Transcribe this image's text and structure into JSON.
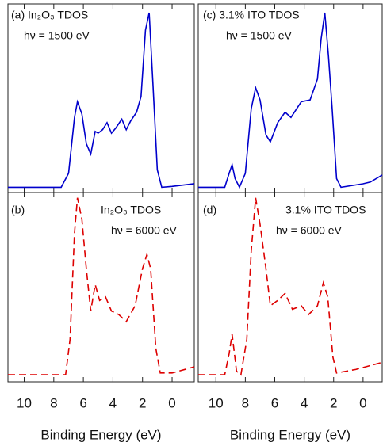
{
  "chart_data": [
    {
      "type": "line",
      "annotations": [
        "(a) In₂O₃ TDOS",
        "hν = 1500 eV"
      ],
      "x": [
        11.1,
        7.5,
        7.0,
        6.6,
        6.4,
        6.1,
        5.8,
        5.5,
        5.2,
        5.0,
        4.7,
        4.4,
        4.1,
        3.8,
        3.4,
        3.1,
        2.8,
        2.4,
        2.1,
        1.8,
        1.55,
        1.3,
        1.0,
        0.7,
        0,
        -1.5
      ],
      "series": [
        {
          "color": "#0000cc",
          "linestyle": "solid",
          "values": [
            0,
            0,
            0.08,
            0.4,
            0.49,
            0.42,
            0.25,
            0.19,
            0.32,
            0.31,
            0.33,
            0.37,
            0.31,
            0.34,
            0.39,
            0.33,
            0.38,
            0.43,
            0.52,
            0.9,
            1.0,
            0.6,
            0.1,
            0,
            0.005,
            0.02
          ]
        }
      ],
      "xlim": [
        11.1,
        -1.5
      ],
      "xticks": [
        10,
        8,
        6,
        4,
        2,
        0
      ],
      "ylim": [
        -0.03,
        1.05
      ]
    },
    {
      "type": "line",
      "annotations": [
        "(b)",
        "In₂O₃ TDOS",
        "hν = 6000 eV"
      ],
      "x": [
        11.1,
        7.2,
        6.9,
        6.6,
        6.4,
        6.1,
        5.8,
        5.5,
        5.2,
        4.9,
        4.5,
        4.1,
        3.6,
        3.1,
        2.5,
        2.0,
        1.7,
        1.45,
        1.1,
        0.8,
        0,
        -1.5
      ],
      "series": [
        {
          "color": "#dd0000",
          "linestyle": "dashed",
          "values": [
            0,
            0,
            0.2,
            0.8,
            1.0,
            0.88,
            0.6,
            0.36,
            0.51,
            0.42,
            0.44,
            0.36,
            0.34,
            0.3,
            0.39,
            0.6,
            0.68,
            0.6,
            0.15,
            0.01,
            0.01,
            0.045
          ]
        }
      ],
      "xlim": [
        11.1,
        -1.5
      ],
      "xticks": [
        10,
        8,
        6,
        4,
        2,
        0
      ],
      "ylim": [
        -0.04,
        1.03
      ],
      "xlabel": "Binding Energy (eV)"
    },
    {
      "type": "line",
      "annotations": [
        "(c) 3.1% ITO TDOS",
        "hν = 1500 eV"
      ],
      "x": [
        11.2,
        9.4,
        9.1,
        8.9,
        8.7,
        8.4,
        8.0,
        7.6,
        7.3,
        7.0,
        6.6,
        6.3,
        5.8,
        5.3,
        4.9,
        4.2,
        3.6,
        3.1,
        2.85,
        2.6,
        2.35,
        2.1,
        1.8,
        1.5,
        0,
        -0.5,
        -1.3
      ],
      "series": [
        {
          "color": "#0000cc",
          "linestyle": "solid",
          "values": [
            0,
            0,
            0.08,
            0.13,
            0.05,
            0,
            0.08,
            0.45,
            0.57,
            0.5,
            0.3,
            0.26,
            0.37,
            0.43,
            0.4,
            0.49,
            0.5,
            0.62,
            0.85,
            1.0,
            0.75,
            0.45,
            0.05,
            0,
            0.02,
            0.03,
            0.07
          ]
        }
      ],
      "xlim": [
        11.2,
        -1.3
      ],
      "xticks": [
        10,
        8,
        6,
        4,
        2,
        0
      ],
      "ylim": [
        -0.03,
        1.05
      ]
    },
    {
      "type": "line",
      "annotations": [
        "(d)",
        "3.1% ITO TDOS",
        "hν = 6000 eV"
      ],
      "x": [
        11.2,
        9.4,
        9.1,
        8.9,
        8.6,
        8.3,
        7.9,
        7.6,
        7.3,
        7.0,
        6.6,
        6.3,
        5.8,
        5.3,
        4.8,
        4.2,
        3.7,
        3.1,
        2.7,
        2.4,
        2.05,
        1.8,
        0.5,
        -1.3
      ],
      "series": [
        {
          "color": "#dd0000",
          "linestyle": "dashed",
          "values": [
            0,
            0,
            0.12,
            0.23,
            0.02,
            0,
            0.2,
            0.7,
            1.0,
            0.85,
            0.6,
            0.39,
            0.42,
            0.46,
            0.37,
            0.39,
            0.34,
            0.39,
            0.52,
            0.44,
            0.1,
            0.01,
            0.03,
            0.07
          ]
        }
      ],
      "xlim": [
        11.2,
        -1.3
      ],
      "xticks": [
        10,
        8,
        6,
        4,
        2,
        0
      ],
      "ylim": [
        -0.04,
        1.03
      ],
      "xlabel": "Binding Energy (eV)"
    }
  ]
}
